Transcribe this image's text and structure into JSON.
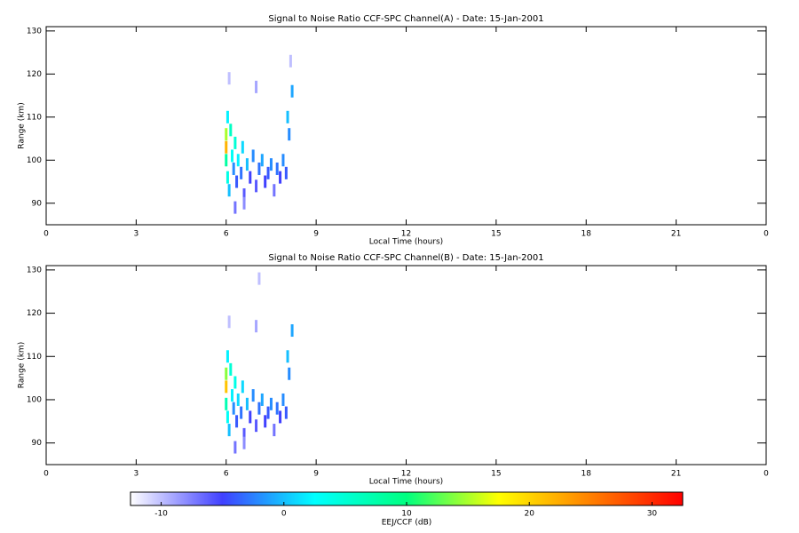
{
  "chart_data": [
    {
      "type": "heatmap",
      "title": "Signal to Noise Ratio CCF-SPC Channel(A) - Date: 15-Jan-2001",
      "x_label": "Local Time (hours)",
      "y_label": "Range (km)",
      "xlim": [
        0,
        24
      ],
      "xticks": [
        0,
        3,
        6,
        9,
        12,
        15,
        18,
        21,
        {
          "value": 24,
          "label": "0"
        }
      ],
      "ylim": [
        85,
        131
      ],
      "yticks": [
        90,
        100,
        110,
        120,
        130
      ],
      "x": [
        6.0,
        6.0,
        6.0,
        6.05,
        6.05,
        6.1,
        6.15,
        6.2,
        6.25,
        6.3,
        6.35,
        6.4,
        6.5,
        6.55,
        6.6,
        6.7,
        6.8,
        6.9,
        7.0,
        7.0,
        7.1,
        7.2,
        7.3,
        7.4,
        7.5,
        7.6,
        7.7,
        7.8,
        7.9,
        8.0,
        8.05,
        8.1,
        8.2,
        8.15,
        6.1,
        6.3,
        6.6
      ],
      "y": [
        103,
        106,
        100,
        110,
        96,
        93,
        107,
        101,
        98,
        104,
        95,
        100,
        97,
        103,
        92,
        99,
        96,
        101,
        94,
        117,
        98,
        100,
        95,
        97,
        99,
        93,
        98,
        96,
        100,
        97,
        110,
        106,
        116,
        123,
        119,
        89,
        90
      ],
      "values": [
        22,
        15,
        8,
        2,
        4,
        0,
        6,
        3,
        -2,
        5,
        -4,
        2,
        -3,
        1,
        -6,
        0,
        -5,
        -2,
        -6,
        -9,
        -3,
        -1,
        -5,
        -4,
        -2,
        -7,
        -3,
        -5,
        -2,
        -4,
        0,
        -2,
        -1,
        -10,
        -10,
        -7,
        -8
      ]
    },
    {
      "type": "heatmap",
      "title": "Signal to Noise Ratio CCF-SPC Channel(B) - Date: 15-Jan-2001",
      "x_label": "Local Time (hours)",
      "y_label": "Range (km)",
      "xlim": [
        0,
        24
      ],
      "xticks": [
        0,
        3,
        6,
        9,
        12,
        15,
        18,
        21,
        {
          "value": 24,
          "label": "0"
        }
      ],
      "ylim": [
        85,
        131
      ],
      "yticks": [
        90,
        100,
        110,
        120,
        130
      ],
      "x": [
        6.0,
        6.0,
        6.0,
        6.05,
        6.05,
        6.1,
        6.15,
        6.2,
        6.25,
        6.3,
        6.35,
        6.4,
        6.5,
        6.55,
        6.6,
        6.7,
        6.8,
        6.9,
        7.0,
        7.0,
        7.1,
        7.1,
        7.2,
        7.3,
        7.4,
        7.5,
        7.6,
        7.7,
        7.8,
        7.9,
        8.0,
        8.05,
        8.1,
        8.2,
        6.1,
        6.3,
        6.6
      ],
      "y": [
        103,
        106,
        99,
        110,
        96,
        93,
        107,
        101,
        98,
        104,
        95,
        100,
        97,
        103,
        92,
        99,
        96,
        101,
        94,
        117,
        98,
        128,
        100,
        95,
        97,
        99,
        93,
        98,
        96,
        100,
        97,
        110,
        106,
        116,
        118,
        89,
        90
      ],
      "values": [
        21,
        14,
        7,
        2,
        3,
        0,
        5,
        2,
        -2,
        4,
        -4,
        1,
        -3,
        1,
        -6,
        0,
        -5,
        -2,
        -6,
        -9,
        -3,
        -10,
        -1,
        -5,
        -4,
        -2,
        -7,
        -3,
        -5,
        -2,
        -4,
        0,
        -2,
        -1,
        -10,
        -7,
        -8
      ]
    }
  ],
  "colorbar": {
    "label": "EEJ/CCF (dB)",
    "lim": [
      -12.5,
      32.5
    ],
    "ticks": [
      -10,
      0,
      10,
      20,
      30
    ],
    "colors": [
      "#ffffff",
      "#4040ff",
      "#00ffff",
      "#00ff80",
      "#ffff00",
      "#ff8000",
      "#ff0000"
    ]
  }
}
